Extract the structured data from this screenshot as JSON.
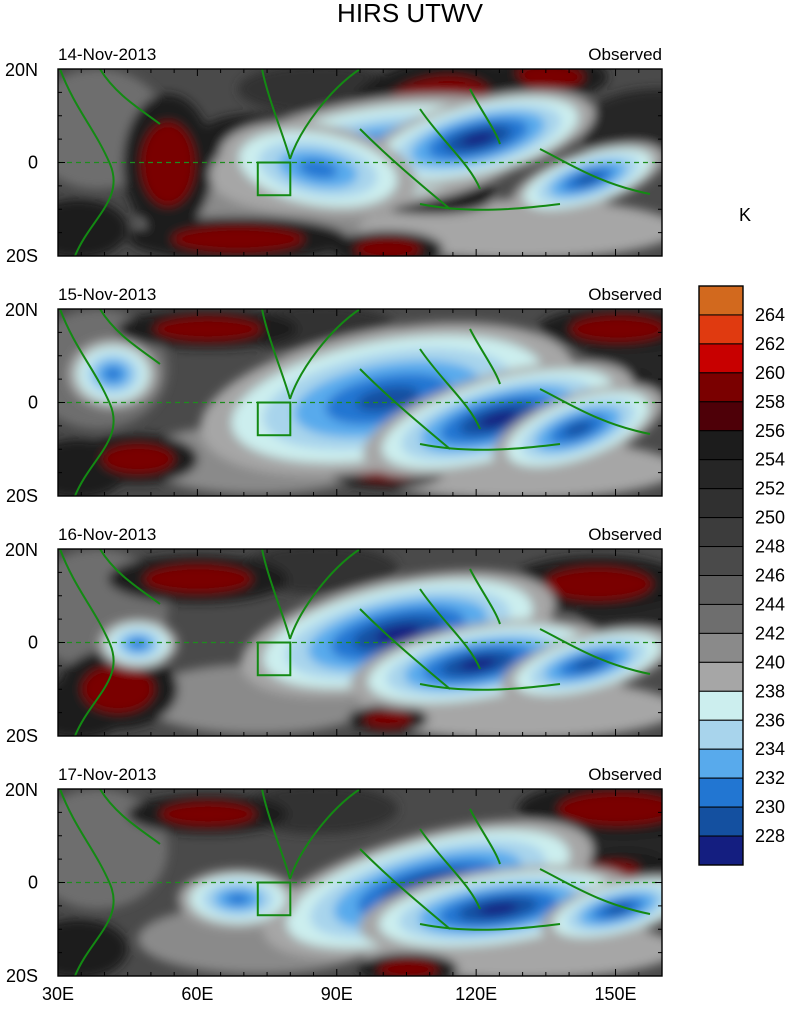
{
  "chart_data": {
    "type": "heatmap",
    "title": "HIRS UTWV",
    "units": "K",
    "x_ticks": [
      "30E",
      "60E",
      "90E",
      "120E",
      "150E"
    ],
    "x_tick_values": [
      30,
      60,
      90,
      120,
      150
    ],
    "xlim": [
      30,
      160
    ],
    "ylim": [
      -20,
      20
    ],
    "colorbar_levels": [
      "264",
      "262",
      "260",
      "258",
      "256",
      "254",
      "252",
      "250",
      "248",
      "246",
      "244",
      "242",
      "240",
      "238",
      "236",
      "234",
      "232",
      "230",
      "228"
    ],
    "colorbar_colors": [
      "#d2691e",
      "#e03a10",
      "#c80000",
      "#7a0000",
      "#4e0008",
      "#1c1c1c",
      "#262626",
      "#303030",
      "#3c3c3c",
      "#4a4a4a",
      "#5c5c5c",
      "#6e6e6e",
      "#8a8a8a",
      "#a6a6a6",
      "#cceeee",
      "#a8d4ec",
      "#58aaec",
      "#2276d2",
      "#1450a0",
      "#141e80"
    ],
    "box_region": {
      "lon": [
        73,
        80
      ],
      "lat": [
        -7,
        0
      ]
    },
    "panels": [
      {
        "date": "14-Nov-2013",
        "label": "Observed",
        "y_ticks": [
          "20N",
          "0",
          "20S"
        ]
      },
      {
        "date": "15-Nov-2013",
        "label": "Observed",
        "y_ticks": [
          "20N",
          "0",
          "20S"
        ]
      },
      {
        "date": "16-Nov-2013",
        "label": "Observed",
        "y_ticks": [
          "20N",
          "0",
          "20S"
        ]
      },
      {
        "date": "17-Nov-2013",
        "label": "Observed",
        "y_ticks": [
          "20N",
          "0",
          "20S"
        ]
      }
    ]
  }
}
